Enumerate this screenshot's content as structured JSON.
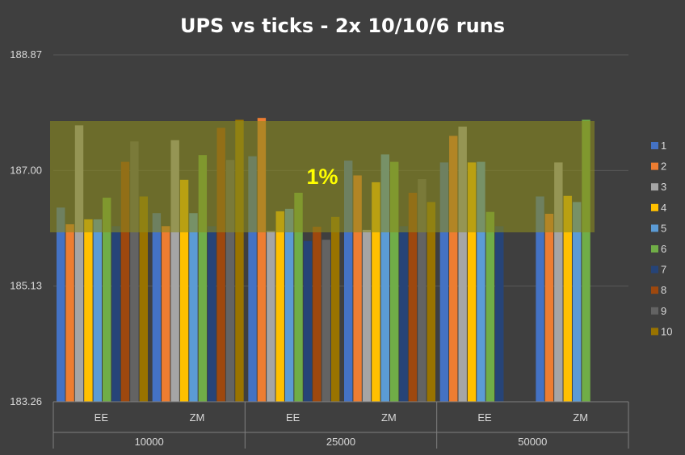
{
  "chart_data": {
    "type": "bar",
    "title": "UPS vs ticks - 2x 10/10/6 runs",
    "ylim": [
      183.26,
      188.87
    ],
    "y_ticks": [
      "183.26",
      "185.13",
      "187.00",
      "188.87"
    ],
    "grid": "horizontal",
    "legend_placement": "right",
    "band": {
      "label": "1%",
      "from": 186.0,
      "to": 187.8,
      "color": "#8a8a1e"
    },
    "outer_categories": [
      "10000",
      "25000",
      "50000"
    ],
    "inner_categories": [
      "EE",
      "ZM",
      "EE",
      "ZM",
      "EE",
      "ZM"
    ],
    "series_colors": [
      "#4472c4",
      "#ed7d31",
      "#a5a5a5",
      "#ffc000",
      "#5b9bd5",
      "#70ad47",
      "#264478",
      "#9e480e",
      "#636363",
      "#997300"
    ],
    "series": [
      {
        "name": "1",
        "values": [
          186.4,
          186.31,
          187.23,
          187.16,
          187.13,
          186.58
        ]
      },
      {
        "name": "2",
        "values": [
          186.13,
          186.1,
          187.85,
          186.92,
          187.56,
          186.3
        ]
      },
      {
        "name": "3",
        "values": [
          187.73,
          187.49,
          186.02,
          186.04,
          187.71,
          187.13
        ]
      },
      {
        "name": "4",
        "values": [
          186.21,
          186.85,
          186.34,
          186.81,
          187.13,
          186.59
        ]
      },
      {
        "name": "5",
        "values": [
          186.21,
          186.31,
          186.38,
          187.26,
          187.14,
          186.49
        ]
      },
      {
        "name": "6",
        "values": [
          186.56,
          187.25,
          186.64,
          187.14,
          186.33,
          187.82
        ]
      },
      {
        "name": "7",
        "values": [
          186.1,
          186.1,
          185.86,
          186.1,
          186.1,
          null
        ]
      },
      {
        "name": "8",
        "values": [
          187.14,
          187.69,
          186.09,
          186.64,
          null,
          null
        ]
      },
      {
        "name": "9",
        "values": [
          187.47,
          187.17,
          185.88,
          186.86,
          null,
          null
        ]
      },
      {
        "name": "10",
        "values": [
          186.58,
          187.82,
          186.25,
          186.49,
          null,
          null
        ]
      }
    ]
  }
}
